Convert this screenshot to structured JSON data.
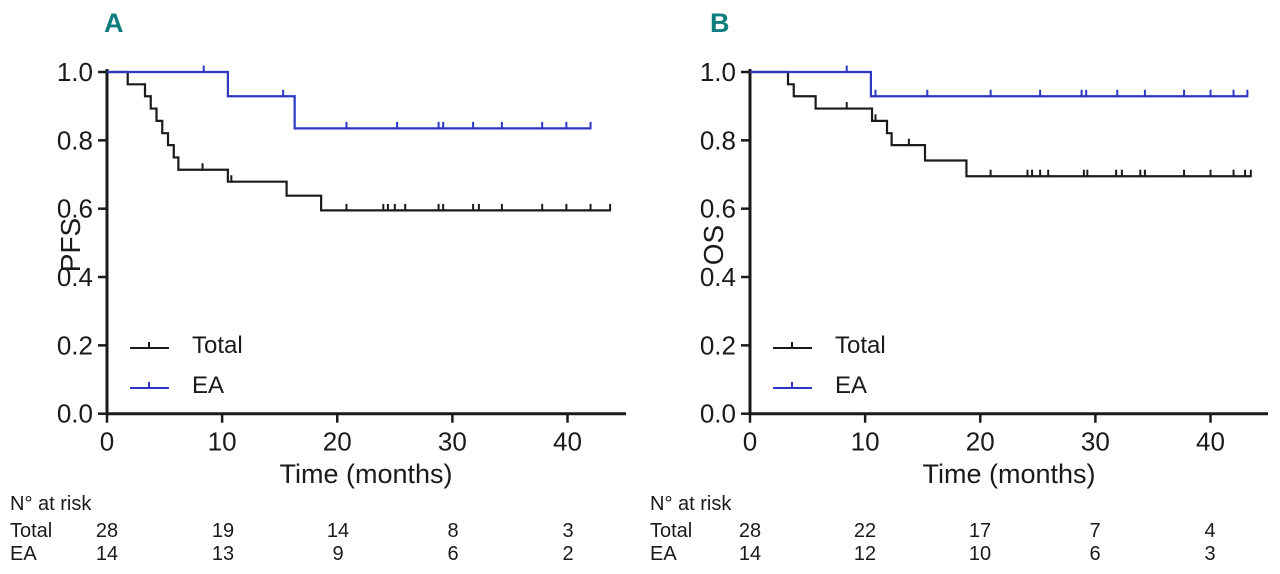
{
  "figure": {
    "accent_teal": "#0e7d7d",
    "curve_black": "#1b1b1b",
    "curve_blue": "#2d37c3"
  },
  "chart_data": [
    {
      "type": "line",
      "subtype": "kaplan-meier-step",
      "panel_label": "A",
      "ylabel": "PFS",
      "xlabel": "Time (months)",
      "xlim": [
        0,
        45
      ],
      "ylim": [
        0.0,
        1.0
      ],
      "xticks": [
        0,
        10,
        20,
        30,
        40
      ],
      "yticks": [
        "1.0",
        "0.8",
        "0.6",
        "0.4",
        "0.2",
        "0.0"
      ],
      "grid": false,
      "legend_position": "lower-left",
      "series": [
        {
          "name": "Total",
          "color": "#1b1b1b",
          "steps": [
            [
              1.8,
              0.964
            ],
            [
              3.3,
              0.929
            ],
            [
              3.8,
              0.893
            ],
            [
              4.3,
              0.857
            ],
            [
              4.8,
              0.821
            ],
            [
              5.3,
              0.786
            ],
            [
              5.8,
              0.75
            ],
            [
              6.2,
              0.714
            ],
            [
              10.5,
              0.679
            ],
            [
              15.6,
              0.638
            ],
            [
              18.6,
              0.595
            ]
          ],
          "end": 43.7,
          "censors": [
            [
              8.3,
              0.714
            ],
            [
              10.8,
              0.679
            ],
            [
              20.8,
              0.595
            ],
            [
              24.0,
              0.595
            ],
            [
              24.4,
              0.595
            ],
            [
              25.0,
              0.595
            ],
            [
              25.9,
              0.595
            ],
            [
              28.8,
              0.595
            ],
            [
              29.2,
              0.595
            ],
            [
              31.8,
              0.595
            ],
            [
              32.3,
              0.595
            ],
            [
              34.3,
              0.595
            ],
            [
              37.8,
              0.595
            ],
            [
              39.9,
              0.595
            ],
            [
              42.0,
              0.595
            ],
            [
              43.7,
              0.595
            ]
          ]
        },
        {
          "name": "EA",
          "color": "#2d37c3",
          "steps": [
            [
              10.5,
              0.929
            ],
            [
              16.3,
              0.835
            ]
          ],
          "end": 42.0,
          "censors": [
            [
              8.4,
              1.0
            ],
            [
              15.3,
              0.929
            ],
            [
              20.8,
              0.835
            ],
            [
              25.2,
              0.835
            ],
            [
              28.8,
              0.835
            ],
            [
              29.2,
              0.835
            ],
            [
              31.8,
              0.835
            ],
            [
              34.3,
              0.835
            ],
            [
              37.8,
              0.835
            ],
            [
              39.9,
              0.835
            ],
            [
              42.0,
              0.835
            ]
          ]
        }
      ],
      "risk_table": {
        "title": "N° at risk",
        "times": [
          0,
          10,
          20,
          30,
          40
        ],
        "rows": [
          {
            "label": "Total",
            "values": [
              "28",
              "19",
              "14",
              "8",
              "3"
            ]
          },
          {
            "label": "EA",
            "values": [
              "14",
              "13",
              "9",
              "6",
              "2"
            ]
          }
        ]
      }
    },
    {
      "type": "line",
      "subtype": "kaplan-meier-step",
      "panel_label": "B",
      "ylabel": "OS",
      "xlabel": "Time (months)",
      "xlim": [
        0,
        45
      ],
      "ylim": [
        0.0,
        1.0
      ],
      "xticks": [
        0,
        10,
        20,
        30,
        40
      ],
      "yticks": [
        "1.0",
        "0.8",
        "0.6",
        "0.4",
        "0.2",
        "0.0"
      ],
      "grid": false,
      "legend_position": "lower-left",
      "series": [
        {
          "name": "Total",
          "color": "#1b1b1b",
          "steps": [
            [
              3.3,
              0.964
            ],
            [
              3.8,
              0.929
            ],
            [
              5.7,
              0.893
            ],
            [
              10.6,
              0.857
            ],
            [
              11.9,
              0.821
            ],
            [
              12.3,
              0.786
            ],
            [
              15.2,
              0.741
            ],
            [
              18.8,
              0.695
            ]
          ],
          "end": 43.5,
          "censors": [
            [
              8.4,
              0.893
            ],
            [
              10.9,
              0.857
            ],
            [
              13.8,
              0.786
            ],
            [
              20.9,
              0.695
            ],
            [
              24.1,
              0.695
            ],
            [
              24.5,
              0.695
            ],
            [
              25.2,
              0.695
            ],
            [
              25.9,
              0.695
            ],
            [
              29.0,
              0.695
            ],
            [
              29.3,
              0.695
            ],
            [
              31.8,
              0.695
            ],
            [
              32.3,
              0.695
            ],
            [
              33.9,
              0.695
            ],
            [
              34.3,
              0.695
            ],
            [
              37.7,
              0.695
            ],
            [
              40.0,
              0.695
            ],
            [
              42.0,
              0.695
            ],
            [
              43.0,
              0.695
            ],
            [
              43.5,
              0.695
            ]
          ]
        },
        {
          "name": "EA",
          "color": "#2d37c3",
          "steps": [
            [
              10.5,
              0.929
            ]
          ],
          "end": 43.2,
          "censors": [
            [
              8.4,
              1.0
            ],
            [
              10.9,
              0.929
            ],
            [
              15.4,
              0.929
            ],
            [
              20.9,
              0.929
            ],
            [
              25.2,
              0.929
            ],
            [
              28.8,
              0.929
            ],
            [
              29.2,
              0.929
            ],
            [
              31.9,
              0.929
            ],
            [
              34.3,
              0.929
            ],
            [
              37.7,
              0.929
            ],
            [
              40.0,
              0.929
            ],
            [
              42.0,
              0.929
            ],
            [
              43.2,
              0.929
            ]
          ]
        }
      ],
      "risk_table": {
        "title": "N° at risk",
        "times": [
          0,
          10,
          20,
          30,
          40
        ],
        "rows": [
          {
            "label": "Total",
            "values": [
              "28",
              "22",
              "17",
              "7",
              "4"
            ]
          },
          {
            "label": "EA",
            "values": [
              "14",
              "12",
              "10",
              "6",
              "3"
            ]
          }
        ]
      }
    }
  ]
}
